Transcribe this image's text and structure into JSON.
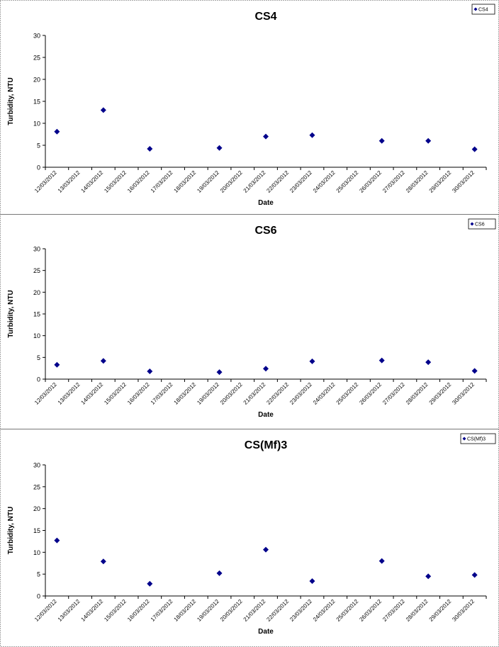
{
  "chart_data": [
    {
      "type": "scatter",
      "title": "CS4",
      "xlabel": "Date",
      "ylabel": "Turbidity, NTU",
      "ylim": [
        0,
        30
      ],
      "yticks": [
        0,
        5,
        10,
        15,
        20,
        25,
        30
      ],
      "grid": false,
      "legend_position": "top-right",
      "categories": [
        "12/03/2012",
        "13/03/2012",
        "14/03/2012",
        "15/03/2012",
        "16/03/2012",
        "17/03/2012",
        "18/03/2012",
        "19/03/2012",
        "20/03/2012",
        "21/03/2012",
        "22/03/2012",
        "23/03/2012",
        "24/03/2012",
        "25/03/2012",
        "26/03/2012",
        "27/03/2012",
        "28/03/2012",
        "29/03/2012",
        "30/03/2012"
      ],
      "series": [
        {
          "name": "CS4",
          "color": "#00008B",
          "marker": "diamond",
          "points": [
            {
              "x": "12/03/2012",
              "y": 8.1
            },
            {
              "x": "14/03/2012",
              "y": 13.0
            },
            {
              "x": "16/03/2012",
              "y": 4.2
            },
            {
              "x": "19/03/2012",
              "y": 4.4
            },
            {
              "x": "21/03/2012",
              "y": 7.0
            },
            {
              "x": "23/03/2012",
              "y": 7.3
            },
            {
              "x": "26/03/2012",
              "y": 6.0
            },
            {
              "x": "28/03/2012",
              "y": 6.0
            },
            {
              "x": "30/03/2012",
              "y": 4.1
            }
          ]
        }
      ]
    },
    {
      "type": "scatter",
      "title": "CS6",
      "xlabel": "Date",
      "ylabel": "Turbidity, NTU",
      "ylim": [
        0,
        30
      ],
      "yticks": [
        0,
        5,
        10,
        15,
        20,
        25,
        30
      ],
      "grid": false,
      "legend_position": "top-right",
      "categories": [
        "12/03/2012",
        "13/03/2012",
        "14/03/2012",
        "15/03/2012",
        "16/03/2012",
        "17/03/2012",
        "18/03/2012",
        "19/03/2012",
        "20/03/2012",
        "21/03/2012",
        "22/03/2012",
        "23/03/2012",
        "24/03/2012",
        "25/03/2012",
        "26/03/2012",
        "27/03/2012",
        "28/03/2012",
        "29/03/2012",
        "30/03/2012"
      ],
      "series": [
        {
          "name": "CS6",
          "color": "#00008B",
          "marker": "diamond",
          "points": [
            {
              "x": "12/03/2012",
              "y": 3.3
            },
            {
              "x": "14/03/2012",
              "y": 4.2
            },
            {
              "x": "16/03/2012",
              "y": 1.8
            },
            {
              "x": "19/03/2012",
              "y": 1.6
            },
            {
              "x": "21/03/2012",
              "y": 2.4
            },
            {
              "x": "23/03/2012",
              "y": 4.1
            },
            {
              "x": "26/03/2012",
              "y": 4.3
            },
            {
              "x": "28/03/2012",
              "y": 3.9
            },
            {
              "x": "30/03/2012",
              "y": 1.9
            }
          ]
        }
      ]
    },
    {
      "type": "scatter",
      "title": "CS(Mf)3",
      "xlabel": "Date",
      "ylabel": "Turbidity, NTU",
      "ylim": [
        0,
        30
      ],
      "yticks": [
        0,
        5,
        10,
        15,
        20,
        25,
        30
      ],
      "grid": false,
      "legend_position": "top-right",
      "categories": [
        "12/03/2012",
        "13/03/2012",
        "14/03/2012",
        "15/03/2012",
        "16/03/2012",
        "17/03/2012",
        "18/03/2012",
        "19/03/2012",
        "20/03/2012",
        "21/03/2012",
        "22/03/2012",
        "23/03/2012",
        "24/03/2012",
        "25/03/2012",
        "26/03/2012",
        "27/03/2012",
        "28/03/2012",
        "29/03/2012",
        "30/03/2012"
      ],
      "series": [
        {
          "name": "CS(Mf)3",
          "color": "#00008B",
          "marker": "diamond",
          "points": [
            {
              "x": "12/03/2012",
              "y": 12.7
            },
            {
              "x": "14/03/2012",
              "y": 7.9
            },
            {
              "x": "16/03/2012",
              "y": 2.8
            },
            {
              "x": "19/03/2012",
              "y": 5.2
            },
            {
              "x": "21/03/2012",
              "y": 10.6
            },
            {
              "x": "23/03/2012",
              "y": 3.4
            },
            {
              "x": "26/03/2012",
              "y": 8.0
            },
            {
              "x": "28/03/2012",
              "y": 4.5
            },
            {
              "x": "30/03/2012",
              "y": 4.8
            }
          ]
        }
      ]
    }
  ]
}
